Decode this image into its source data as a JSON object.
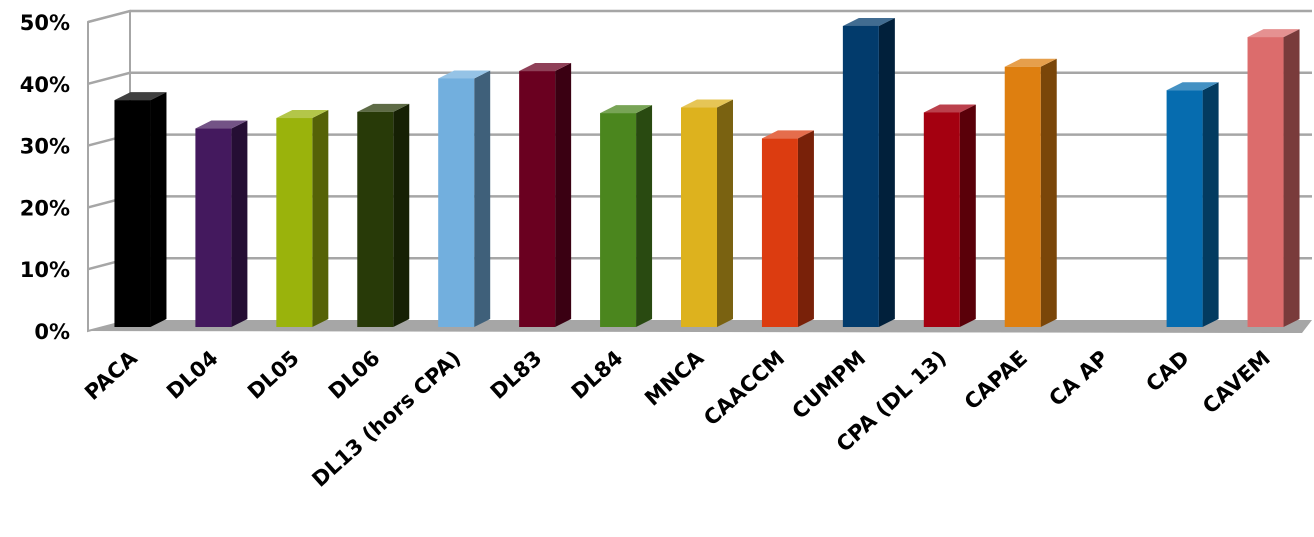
{
  "chart_data": {
    "type": "bar",
    "categories": [
      "PACA",
      "DL04",
      "DL05",
      "DL06",
      "DL13 (hors CPA)",
      "DL83",
      "DL84",
      "MNCA",
      "CAACCM",
      "CUMPM",
      "CPA (DL 13)",
      "CAPAE",
      "CA AP",
      "CAD",
      "CAVEM"
    ],
    "values": [
      37.2,
      32.6,
      34.3,
      35.3,
      40.7,
      41.9,
      35.1,
      36.0,
      31.0,
      49.2,
      35.2,
      42.6,
      null,
      38.8,
      47.4
    ],
    "colors": [
      "#000000",
      "#44195e",
      "#9ab30c",
      "#283a08",
      "#72afde",
      "#6a0020",
      "#4b861e",
      "#ddb21e",
      "#dc3c10",
      "#023b6c",
      "#a40010",
      "#de7f10",
      "#ffffff",
      "#066caf",
      "#dc6c6c"
    ],
    "yticks": [
      "0%",
      "10%",
      "20%",
      "30%",
      "40%",
      "50%"
    ],
    "ylim": [
      0,
      50
    ],
    "grid": true,
    "legend": "none",
    "title": "",
    "xlabel": "",
    "ylabel": ""
  }
}
